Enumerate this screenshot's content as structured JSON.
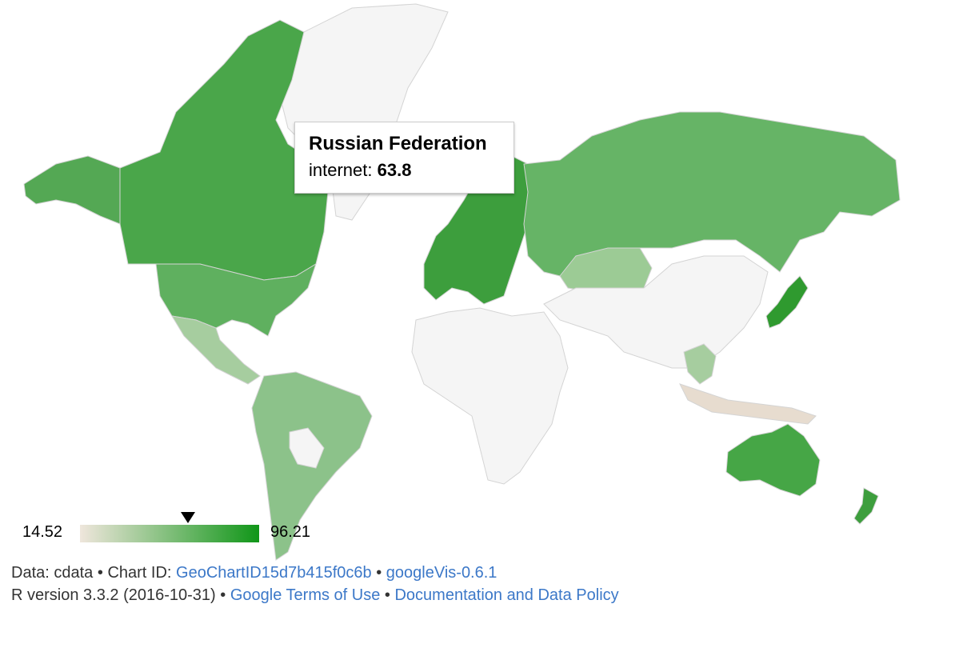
{
  "tooltip": {
    "country": "Russian Federation",
    "metric_label": "internet:",
    "metric_value": "63.8"
  },
  "legend": {
    "min": "14.52",
    "max": "96.21",
    "marker_value": 63.8,
    "color_min": "#efe6dc",
    "color_max": "#109618"
  },
  "colors": {
    "no_data": "#f5f5f5",
    "border": "#d4d4d4",
    "link": "#3c78c8"
  },
  "footer": {
    "line1_prefix": "Data: cdata",
    "sep": "•",
    "chart_id_label": "Chart ID:",
    "chart_id": "GeoChartID15d7b415f0c6b",
    "package": "googleVis-0.6.1",
    "r_version": "R version 3.3.2 (2016-10-31)",
    "terms_link": "Google Terms of Use",
    "policy_link": "Documentation and Data Policy"
  }
}
